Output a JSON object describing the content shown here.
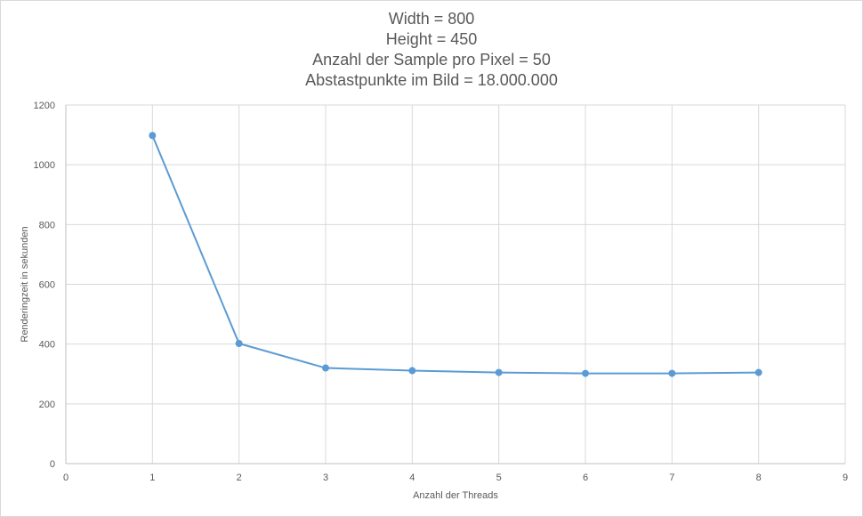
{
  "chart_data": {
    "type": "scatter",
    "title_lines": [
      "Width = 800",
      "Height = 450",
      "Anzahl der Sample pro Pixel = 50",
      "Abstastpunkte im Bild = 18.000.000"
    ],
    "xlabel": "Anzahl der Threads",
    "ylabel": "Renderingzeit in sekunden",
    "xlim": [
      0,
      9
    ],
    "ylim": [
      0,
      1200
    ],
    "xticks": [
      0,
      1,
      2,
      3,
      4,
      5,
      6,
      7,
      8,
      9
    ],
    "yticks": [
      0,
      200,
      400,
      600,
      800,
      1000,
      1200
    ],
    "grid": true,
    "legend": "none",
    "series": [
      {
        "color": "#5b9bd5",
        "x": [
          1,
          2,
          3,
          4,
          5,
          6,
          7,
          8
        ],
        "y": [
          1098,
          402,
          320,
          311,
          305,
          302,
          302,
          305
        ]
      }
    ]
  },
  "colors": {
    "grid": "#d9d9d9",
    "axis": "#bfbfbf",
    "text": "#595959"
  }
}
